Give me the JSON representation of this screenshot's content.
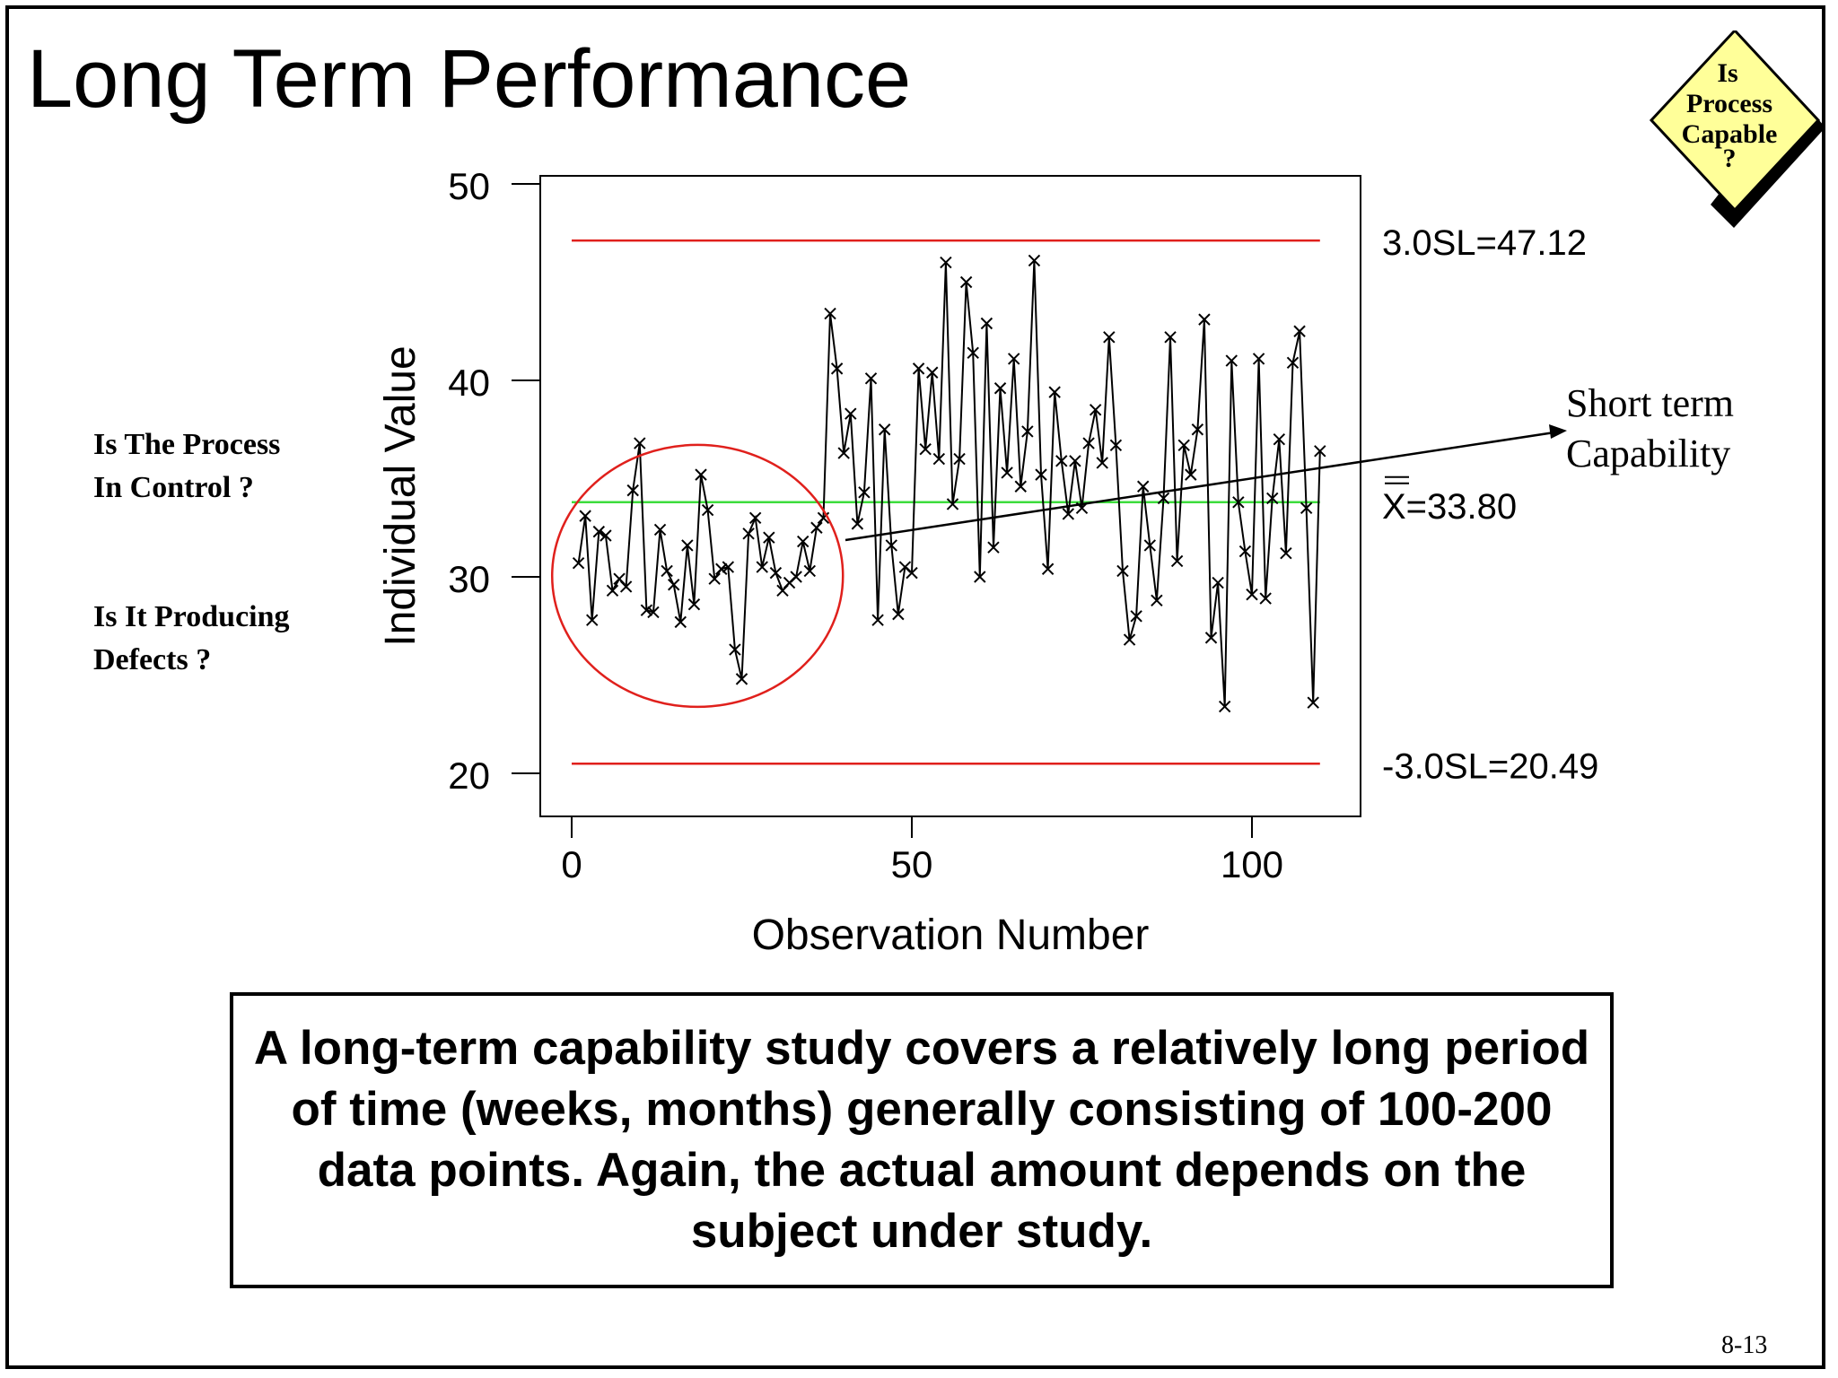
{
  "slide": {
    "title": "Long Term Performance",
    "badge": {
      "line1": "Is",
      "line2": "Process",
      "line3": "Capable",
      "line4": "?"
    },
    "questions": {
      "control": [
        "Is The Process",
        "In Control ?"
      ],
      "defects": [
        "Is It Producing",
        "Defects ?"
      ]
    },
    "note": "A long-term capability study covers a relatively long period of time (weeks, months) generally consisting of 100-200 data points. Again, the actual amount depends on the subject under study.",
    "page_number": "8-13",
    "colors": {
      "limit_line": "#e0201c",
      "center_line": "#3ddc3d",
      "circle": "#e0201c",
      "badge_fill": "#ffff99",
      "series": "#000000"
    }
  },
  "chart_data": {
    "type": "line",
    "xlabel": "Observation Number",
    "ylabel": "Individual Value",
    "xlim": [
      -5,
      116
    ],
    "ylim": [
      17.8,
      50.5
    ],
    "x_ticks": [
      0,
      50,
      100
    ],
    "y_ticks": [
      20,
      30,
      40,
      50
    ],
    "marker": "x",
    "grid": false,
    "series": [
      {
        "values": [
          30.7,
          33.1,
          27.8,
          32.3,
          32.1,
          29.3,
          29.9,
          29.5,
          34.4,
          36.8,
          28.3,
          28.2,
          32.4,
          30.3,
          29.6,
          27.7,
          31.6,
          28.6,
          35.2,
          33.4,
          29.9,
          30.4,
          30.5,
          26.3,
          24.8,
          32.2,
          33.0,
          30.5,
          32.0,
          30.2,
          29.3,
          29.7,
          30.0,
          31.8,
          30.3,
          32.5,
          33.0,
          43.4,
          40.6,
          36.3,
          38.3,
          32.7,
          34.3,
          40.1,
          27.8,
          37.5,
          31.6,
          28.1,
          30.5,
          30.2,
          40.6,
          36.5,
          40.4,
          36.0,
          46.0,
          33.7,
          36.0,
          45.0,
          41.4,
          30.0,
          42.9,
          31.5,
          39.6,
          35.3,
          41.1,
          34.6,
          37.4,
          46.1,
          35.2,
          30.4,
          39.4,
          35.9,
          33.2,
          35.9,
          33.5,
          36.8,
          38.5,
          35.8,
          42.2,
          36.7,
          30.3,
          26.8,
          28.0,
          34.6,
          31.6,
          28.8,
          34.0,
          42.2,
          30.8,
          36.7,
          35.2,
          37.5,
          43.1,
          26.9,
          29.7,
          23.4,
          41.0,
          33.8,
          31.3,
          29.1,
          41.1,
          28.9,
          34.0,
          37.0,
          31.2,
          40.9,
          42.5,
          33.5,
          23.6,
          36.4
        ]
      }
    ],
    "reference_lines": [
      {
        "name": "upper_limit",
        "value": 47.12,
        "label": "3.0SL=47.12"
      },
      {
        "name": "center",
        "value": 33.8,
        "label": "X=33.80"
      },
      {
        "name": "lower_limit",
        "value": 20.49,
        "label": "-3.0SL=20.49"
      }
    ],
    "annotations": [
      {
        "type": "ellipse",
        "label": ""
      },
      {
        "type": "arrow",
        "label": [
          "Short term",
          "Capability"
        ]
      }
    ]
  }
}
